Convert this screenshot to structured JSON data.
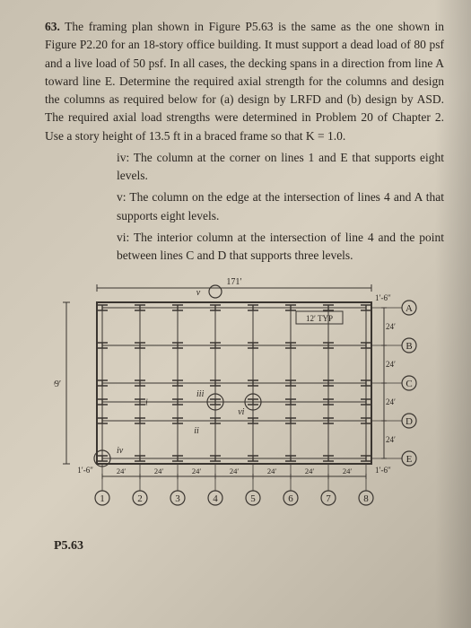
{
  "problem": {
    "number": "63.",
    "main_text": "The framing plan shown in Figure P5.63 is the same as the one shown in Figure P2.20 for an 18-story office building. It must support a dead load of 80 psf and a live load of 50 psf. In all cases, the decking spans in a direction from line A toward line E. Determine the required axial strength for the columns and design the columns as required below for (a) design by LRFD and (b) design by ASD. The required axial load strengths were determined in Problem 20 of Chapter 2. Use a story height of 13.5 ft in a braced frame so that K = 1.0.",
    "items": {
      "iv": "iv: The column at the corner on lines 1 and E that supports eight levels.",
      "v": "v: The column on the edge at the intersection of lines 4 and A that supports eight levels.",
      "vi": "vi: The interior column at the intersection of line 4 and the point between lines C and D that supports three levels."
    }
  },
  "figure": {
    "label": "P5.63",
    "width_label": "171′",
    "height_label": "99′",
    "corner_label_tr": "1′-6″",
    "corner_label_br": "1′-6″",
    "corner_label_bl": "1′-6″",
    "typ_label": "12′ TYP",
    "row_labels": [
      "A",
      "B",
      "C",
      "D",
      "E"
    ],
    "col_labels": [
      "1",
      "2",
      "3",
      "4",
      "5",
      "6",
      "7",
      "8"
    ],
    "row_spacing": "24′",
    "col_spacing": "24′",
    "markers": {
      "i": "i",
      "ii": "ii",
      "iii": "iii",
      "iv": "iv",
      "v": "v",
      "vi": "vi"
    },
    "colors": {
      "line": "#3a3530",
      "text": "#2a2520",
      "bg": "transparent"
    },
    "strokes": {
      "frame": 2,
      "grid": 1
    },
    "fontsize": {
      "dim": 10,
      "label": 11,
      "marker": 10
    }
  }
}
